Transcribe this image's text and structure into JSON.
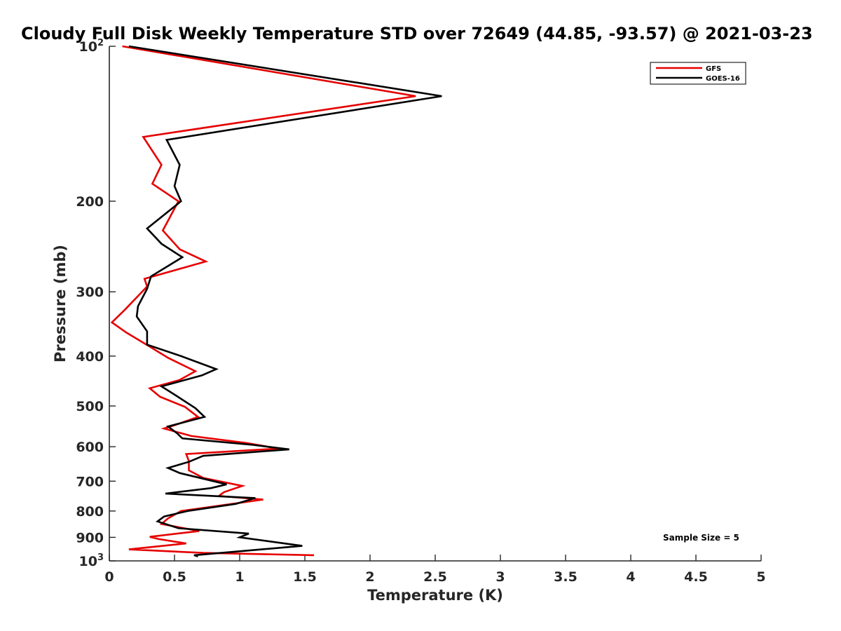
{
  "chart_data": {
    "type": "line",
    "title": "Cloudy Full Disk Weekly Temperature STD over 72649 (44.85, -93.57) @ 2021-03-23",
    "xlabel": "Temperature (K)",
    "ylabel": "Pressure (mb)",
    "xlim": [
      0,
      5
    ],
    "ylim": [
      100,
      1000
    ],
    "yscale": "log",
    "y_reversed": true,
    "x_ticks": [
      "0",
      "0.5",
      "1",
      "1.5",
      "2",
      "2.5",
      "3",
      "3.5",
      "4",
      "4.5",
      "5"
    ],
    "y_ticks": [
      {
        "value": 100,
        "base": "10",
        "exp": "2"
      },
      {
        "value": 200,
        "label": "200"
      },
      {
        "value": 300,
        "label": "300"
      },
      {
        "value": 400,
        "label": "400"
      },
      {
        "value": 500,
        "label": "500"
      },
      {
        "value": 600,
        "label": "600"
      },
      {
        "value": 700,
        "label": "700"
      },
      {
        "value": 800,
        "label": "800"
      },
      {
        "value": 900,
        "label": "900"
      },
      {
        "value": 1000,
        "base": "10",
        "exp": "3"
      }
    ],
    "grid": false,
    "legend_position": "top-right",
    "annotation": "Sample Size = 5",
    "series": [
      {
        "name": "GFS",
        "color": "#e60000",
        "points": [
          [
            0.1,
            100
          ],
          [
            2.35,
            125
          ],
          [
            0.26,
            150
          ],
          [
            0.4,
            170
          ],
          [
            0.33,
            185
          ],
          [
            0.53,
            200
          ],
          [
            0.41,
            228
          ],
          [
            0.54,
            248
          ],
          [
            0.74,
            262
          ],
          [
            0.27,
            283
          ],
          [
            0.29,
            293
          ],
          [
            0.12,
            325
          ],
          [
            0.02,
            344
          ],
          [
            0.13,
            360
          ],
          [
            0.3,
            382
          ],
          [
            0.45,
            403
          ],
          [
            0.66,
            428
          ],
          [
            0.54,
            445
          ],
          [
            0.31,
            462
          ],
          [
            0.39,
            480
          ],
          [
            0.58,
            502
          ],
          [
            0.68,
            525
          ],
          [
            0.5,
            545
          ],
          [
            0.42,
            553
          ],
          [
            0.63,
            572
          ],
          [
            1.05,
            590
          ],
          [
            1.3,
            605
          ],
          [
            0.59,
            620
          ],
          [
            0.61,
            640
          ],
          [
            0.61,
            667
          ],
          [
            0.72,
            690
          ],
          [
            1.02,
            715
          ],
          [
            0.88,
            735
          ],
          [
            0.84,
            748
          ],
          [
            1.18,
            760
          ],
          [
            0.55,
            800
          ],
          [
            0.45,
            827
          ],
          [
            0.4,
            848
          ],
          [
            0.69,
            875
          ],
          [
            0.31,
            898
          ],
          [
            0.38,
            907
          ],
          [
            0.59,
            925
          ],
          [
            0.15,
            950
          ],
          [
            0.72,
            965
          ],
          [
            1.57,
            975
          ]
        ]
      },
      {
        "name": "GOES-16",
        "color": "#000000",
        "points": [
          [
            0.15,
            100
          ],
          [
            2.55,
            125
          ],
          [
            0.44,
            152
          ],
          [
            0.54,
            170
          ],
          [
            0.5,
            187
          ],
          [
            0.55,
            200
          ],
          [
            0.29,
            226
          ],
          [
            0.4,
            242
          ],
          [
            0.56,
            257
          ],
          [
            0.32,
            280
          ],
          [
            0.29,
            296
          ],
          [
            0.22,
            320
          ],
          [
            0.21,
            335
          ],
          [
            0.29,
            358
          ],
          [
            0.29,
            380
          ],
          [
            0.55,
            400
          ],
          [
            0.82,
            424
          ],
          [
            0.71,
            436
          ],
          [
            0.4,
            458
          ],
          [
            0.51,
            477
          ],
          [
            0.66,
            505
          ],
          [
            0.73,
            525
          ],
          [
            0.45,
            548
          ],
          [
            0.52,
            565
          ],
          [
            0.56,
            578
          ],
          [
            1.1,
            595
          ],
          [
            1.38,
            607
          ],
          [
            0.72,
            625
          ],
          [
            0.61,
            642
          ],
          [
            0.45,
            660
          ],
          [
            0.54,
            675
          ],
          [
            0.9,
            710
          ],
          [
            0.78,
            722
          ],
          [
            0.43,
            740
          ],
          [
            1.12,
            755
          ],
          [
            0.97,
            775
          ],
          [
            0.6,
            800
          ],
          [
            0.42,
            820
          ],
          [
            0.37,
            838
          ],
          [
            0.53,
            864
          ],
          [
            1.07,
            885
          ],
          [
            1.0,
            900
          ],
          [
            1.48,
            935
          ],
          [
            0.65,
            975
          ],
          [
            0.68,
            980
          ]
        ]
      }
    ]
  }
}
